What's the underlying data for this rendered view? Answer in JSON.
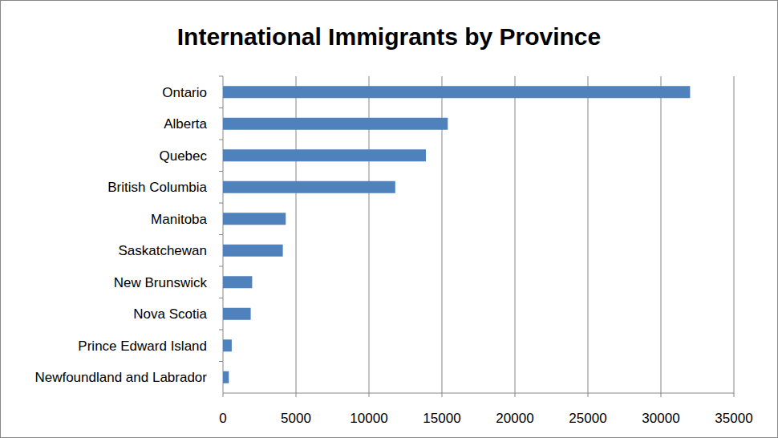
{
  "chart_data": {
    "type": "bar",
    "title": "International Immigrants by Province",
    "orientation": "horizontal",
    "categories": [
      "Ontario",
      "Alberta",
      "Quebec",
      "British Columbia",
      "Manitoba",
      "Saskatchewan",
      "New Brunswick",
      "Nova Scotia",
      "Prince Edward Island",
      "Newfoundland and Labrador"
    ],
    "values": [
      32000,
      15400,
      13900,
      11800,
      4300,
      4100,
      2000,
      1900,
      600,
      400
    ],
    "color": "#4f81bd",
    "xlim": [
      0,
      35000
    ],
    "xticks": [
      0,
      5000,
      10000,
      15000,
      20000,
      25000,
      30000,
      35000
    ],
    "grid": true
  }
}
